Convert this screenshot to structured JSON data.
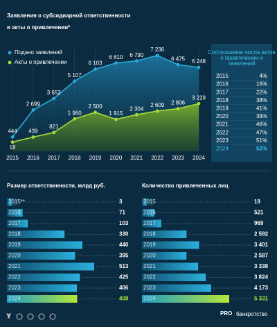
{
  "chart_data": [
    {
      "type": "line",
      "title": "Заявления о субсидиарной ответственности и акты о привлечении*",
      "categories": [
        "2015",
        "2016",
        "2017",
        "2018",
        "2019",
        "2020",
        "2021",
        "2022",
        "2023",
        "2024"
      ],
      "series": [
        {
          "name": "Подано заявлений",
          "color": "#2aa9d9",
          "values": [
            444,
            2699,
            3652,
            5107,
            6103,
            6610,
            6790,
            7236,
            6475,
            6248
          ],
          "value_labels": [
            "444",
            "2 699",
            "3 652",
            "5 107",
            "6 103",
            "6 610",
            "6 790",
            "7 236",
            "6 475",
            "6 248"
          ]
        },
        {
          "name": "Акты о привлечении",
          "color": "#a8d83a",
          "values": [
            18,
            439,
            821,
            1960,
            2500,
            1915,
            2304,
            2609,
            2806,
            3229
          ],
          "value_labels": [
            "18",
            "439",
            "821",
            "1 960",
            "2 500",
            "1 915",
            "2 304",
            "2 609",
            "2 806",
            "3 229"
          ]
        }
      ]
    },
    {
      "type": "table",
      "title": "Соотношение числа актов о привлечении и заявлений",
      "rows": [
        [
          "2015",
          "4%"
        ],
        [
          "2016",
          "16%"
        ],
        [
          "2017",
          "22%"
        ],
        [
          "2018",
          "38%"
        ],
        [
          "2019",
          "41%"
        ],
        [
          "2020",
          "39%"
        ],
        [
          "2021",
          "46%"
        ],
        [
          "2022",
          "47%"
        ],
        [
          "2023",
          "51%"
        ],
        [
          "2024",
          "52%"
        ]
      ]
    },
    {
      "type": "hbar",
      "title": "Размер ответственности, млрд руб.",
      "color": "#1f9bc4",
      "categories": [
        "2015**",
        "2016",
        "2017",
        "2018",
        "2019",
        "2020",
        "2021",
        "2022",
        "2023",
        "2024"
      ],
      "values": [
        3,
        71,
        103,
        330,
        440,
        395,
        513,
        425,
        406,
        408
      ]
    },
    {
      "type": "hbar",
      "title": "Количество привлеченных лиц",
      "color": "#1f9bc4",
      "categories": [
        "2015",
        "2016",
        "2017",
        "2018",
        "2019",
        "2020",
        "2021",
        "2022",
        "2023",
        "2024"
      ],
      "values": [
        19,
        521,
        969,
        2592,
        3401,
        2587,
        3338,
        3824,
        4173,
        5331
      ],
      "value_labels": [
        "19",
        "521",
        "969",
        "2 592",
        "3 401",
        "2 587",
        "3 338",
        "3 824",
        "4 173",
        "5 331"
      ]
    }
  ],
  "footer": {
    "brand": "PRO",
    "brand_sub": "банкротство"
  }
}
